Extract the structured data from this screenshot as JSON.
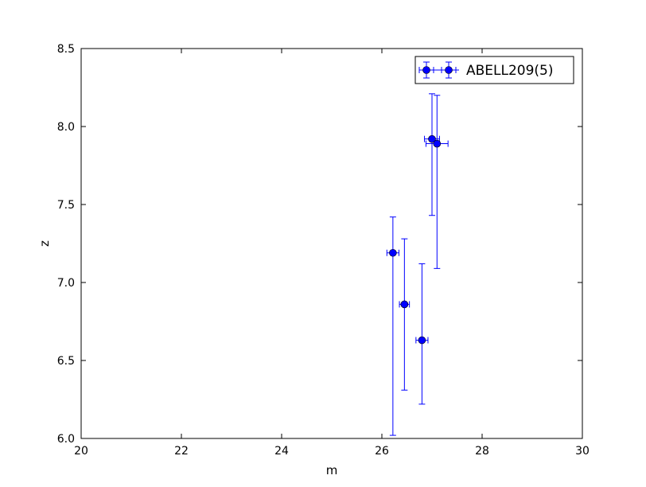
{
  "chart_data": {
    "type": "scatter",
    "title": "",
    "xlabel": "m",
    "ylabel": "z",
    "xlim": [
      20,
      30
    ],
    "ylim": [
      6.0,
      8.5
    ],
    "xticks": [
      "20",
      "22",
      "24",
      "26",
      "28",
      "30"
    ],
    "yticks": [
      "6.0",
      "6.5",
      "7.0",
      "7.5",
      "8.0",
      "8.5"
    ],
    "grid": false,
    "legend_position": "top-right",
    "series": [
      {
        "name": "ABELL209(5)",
        "color": "#0000ff",
        "marker": "circle",
        "error_bars": true,
        "points": [
          {
            "x": 26.22,
            "y": 7.19,
            "xerr": 0.12,
            "ylow": 6.02,
            "yhigh": 7.42
          },
          {
            "x": 26.45,
            "y": 6.86,
            "xerr": 0.1,
            "ylow": 6.31,
            "yhigh": 7.28
          },
          {
            "x": 26.8,
            "y": 6.63,
            "xerr": 0.12,
            "ylow": 6.22,
            "yhigh": 7.12
          },
          {
            "x": 27.0,
            "y": 7.92,
            "xerr": 0.15,
            "ylow": 7.43,
            "yhigh": 8.21
          },
          {
            "x": 27.1,
            "y": 7.89,
            "xerr": 0.22,
            "ylow": 7.09,
            "yhigh": 8.2
          }
        ]
      }
    ]
  }
}
